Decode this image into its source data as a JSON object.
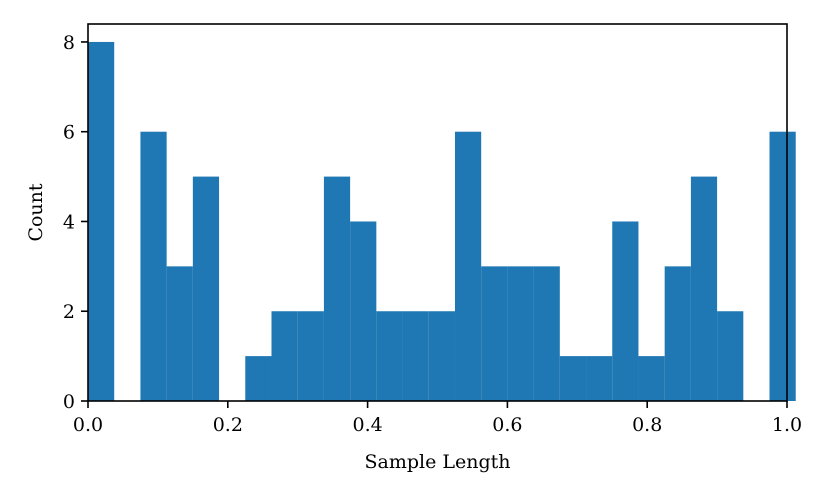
{
  "chart_data": {
    "type": "bar",
    "subtype": "histogram",
    "title": "",
    "xlabel": "Sample Length",
    "ylabel": "Count",
    "xlim": [
      0.0,
      1.0
    ],
    "ylim": [
      0,
      8.4
    ],
    "bin_width": 0.0375,
    "x_ticks": [
      0.0,
      0.2,
      0.4,
      0.6,
      0.8,
      1.0
    ],
    "x_tick_labels": [
      "0.0",
      "0.2",
      "0.4",
      "0.6",
      "0.8",
      "1.0"
    ],
    "y_ticks": [
      0,
      2,
      4,
      6,
      8
    ],
    "y_tick_labels": [
      "0",
      "2",
      "4",
      "6",
      "8"
    ],
    "bin_starts": [
      0.0,
      0.0375,
      0.075,
      0.1125,
      0.15,
      0.1875,
      0.225,
      0.2625,
      0.3,
      0.3375,
      0.375,
      0.4125,
      0.45,
      0.4875,
      0.525,
      0.5625,
      0.6,
      0.6375,
      0.675,
      0.7125,
      0.75,
      0.7875,
      0.825,
      0.8625,
      0.9,
      0.9375,
      0.975
    ],
    "counts": [
      8,
      0,
      6,
      3,
      5,
      0,
      1,
      2,
      2,
      5,
      4,
      2,
      2,
      2,
      6,
      3,
      3,
      3,
      1,
      1,
      4,
      1,
      3,
      5,
      2,
      0,
      6
    ],
    "grid": false,
    "legend": "none",
    "colors": {
      "bar": "#1f77b4",
      "axis": "#000000",
      "background": "#ffffff"
    }
  }
}
